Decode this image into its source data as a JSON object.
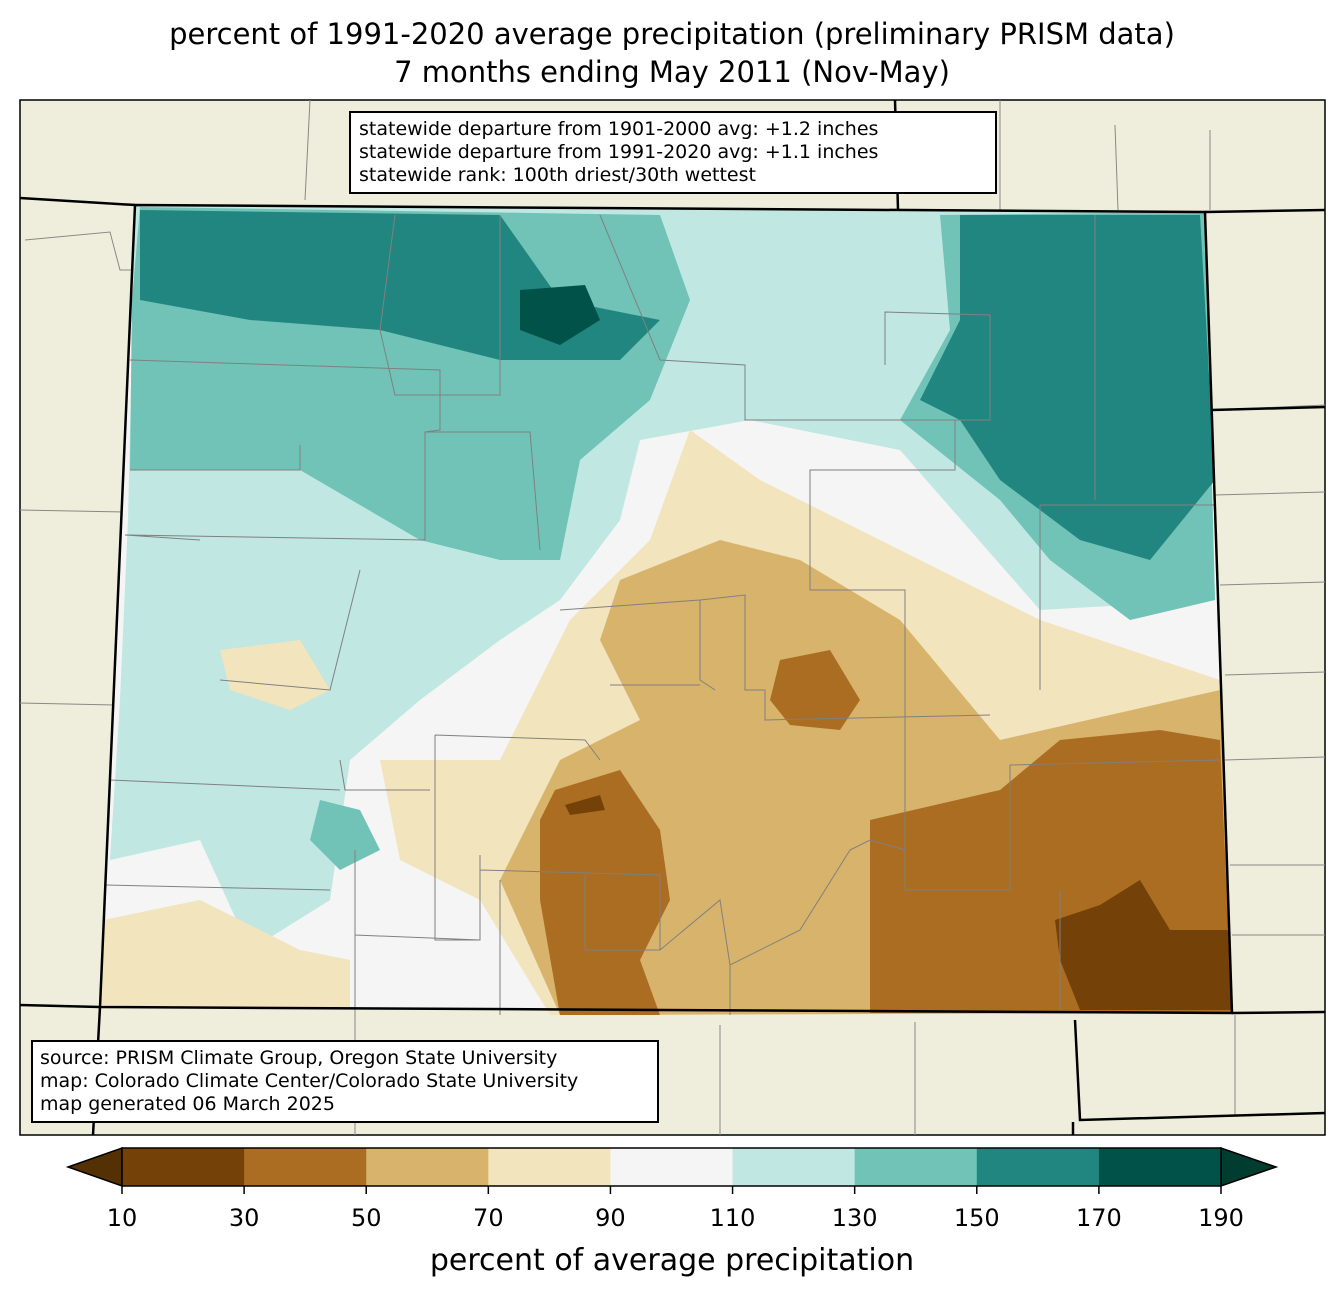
{
  "title": {
    "line1": "percent of 1991-2020 average precipitation (preliminary PRISM data)",
    "line2": "7 months ending May 2011 (Nov-May)"
  },
  "stats": [
    "statewide departure from 1901-2000 avg: +1.2 inches",
    "statewide departure from 1991-2020 avg: +1.1 inches",
    "statewide rank: 100th driest/30th wettest"
  ],
  "source": [
    "source: PRISM Climate Group, Oregon State University",
    "map: Colorado Climate Center/Colorado State University",
    "map generated 06 March 2025"
  ],
  "legend": {
    "label": "percent of average precipitation",
    "ticks": [
      "10",
      "30",
      "50",
      "70",
      "90",
      "110",
      "130",
      "150",
      "170",
      "190"
    ],
    "colors": [
      "#744208",
      "#ab6d22",
      "#d8b36c",
      "#f2e4bd",
      "#f4f5f4",
      "#c0e7e2",
      "#70c3b6",
      "#228680",
      "#01534a"
    ],
    "under_color": "#543005",
    "over_color": "#003c30"
  },
  "land_color": "#efeedc"
}
